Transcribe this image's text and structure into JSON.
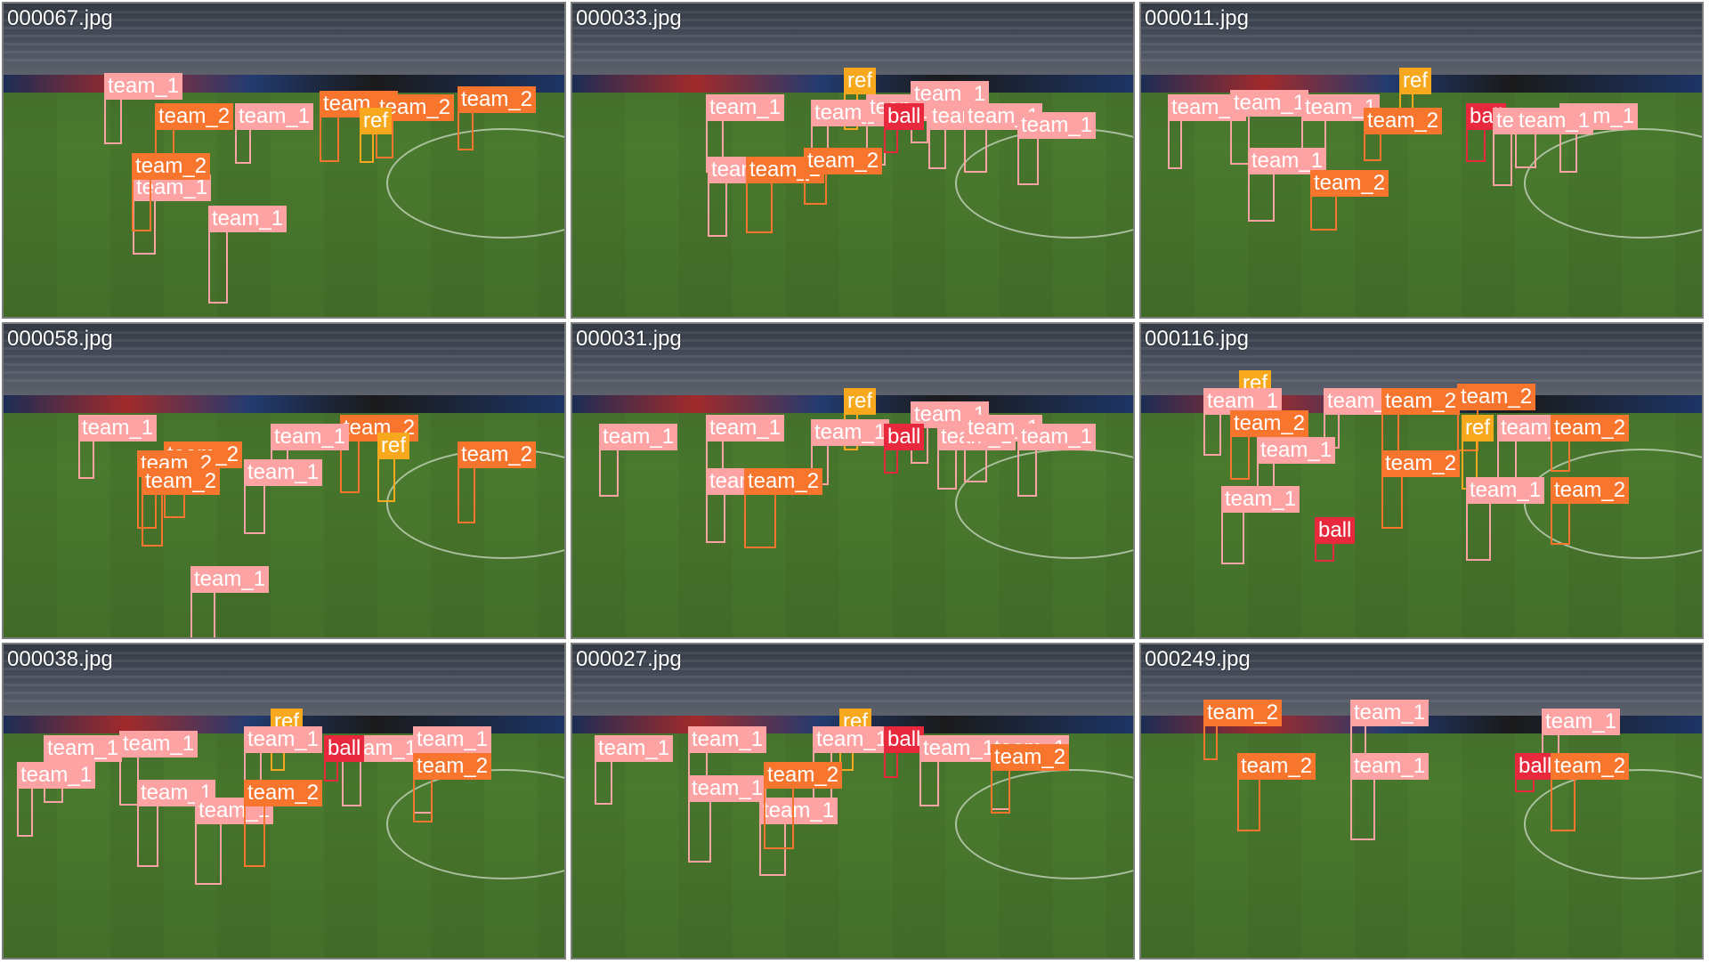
{
  "colors": {
    "team_1": "#fda3a3",
    "team_2": "#f7752d",
    "ref": "#f7a81c",
    "ball": "#e8283c"
  },
  "tiles": [
    {
      "label": "000067.jpg",
      "detections": [
        {
          "class": "team_1",
          "label": "team_1"
        },
        {
          "class": "team_2",
          "label": "team_2"
        },
        {
          "class": "team_2",
          "label": "team_2"
        },
        {
          "class": "team_2",
          "label": "team_2"
        },
        {
          "class": "team_2",
          "label": "team_2"
        },
        {
          "class": "team_1",
          "label": "team_1"
        },
        {
          "class": "team_1",
          "label": "team_1"
        },
        {
          "class": "team_1",
          "label": "team_1"
        },
        {
          "class": "team_2",
          "label": "team_2"
        },
        {
          "class": "ref",
          "label": "ref"
        }
      ]
    },
    {
      "label": "000033.jpg",
      "detections": [
        {
          "class": "ref",
          "label": "ref"
        },
        {
          "class": "team_1",
          "label": "team_1"
        },
        {
          "class": "team_1",
          "label": "team_1"
        },
        {
          "class": "team_1",
          "label": "team_1"
        },
        {
          "class": "team_1",
          "label": "team_1"
        },
        {
          "class": "ball",
          "label": "ball"
        },
        {
          "class": "team_1",
          "label": "team_1"
        },
        {
          "class": "team_1",
          "label": "team_1"
        },
        {
          "class": "team_1",
          "label": "team_1"
        },
        {
          "class": "team_2",
          "label": "team_2"
        },
        {
          "class": "team_2",
          "label": "team_2"
        },
        {
          "class": "team_1",
          "label": "team_1"
        }
      ]
    },
    {
      "label": "000011.jpg",
      "detections": [
        {
          "class": "ref",
          "label": "ref"
        },
        {
          "class": "team_1",
          "label": "team_1"
        },
        {
          "class": "team_1",
          "label": "team_1"
        },
        {
          "class": "team_1",
          "label": "team_1"
        },
        {
          "class": "team_2",
          "label": "team_2"
        },
        {
          "class": "ball",
          "label": "ball"
        },
        {
          "class": "team_1",
          "label": "team_1"
        },
        {
          "class": "team_1",
          "label": "team_1"
        },
        {
          "class": "team_1",
          "label": "team_1"
        },
        {
          "class": "team_1",
          "label": "team_1"
        },
        {
          "class": "team_2",
          "label": "team_2"
        }
      ]
    },
    {
      "label": "000058.jpg",
      "detections": [
        {
          "class": "team_1",
          "label": "team_1"
        },
        {
          "class": "team_2",
          "label": "team_2"
        },
        {
          "class": "team_2",
          "label": "team_2"
        },
        {
          "class": "team_1",
          "label": "team_1"
        },
        {
          "class": "team_2",
          "label": "team_2"
        },
        {
          "class": "team_2",
          "label": "team_2"
        },
        {
          "class": "team_1",
          "label": "team_1"
        },
        {
          "class": "team_1",
          "label": "team_1"
        },
        {
          "class": "team_2",
          "label": "team_2"
        },
        {
          "class": "ref",
          "label": "ref"
        }
      ]
    },
    {
      "label": "000031.jpg",
      "detections": [
        {
          "class": "ref",
          "label": "ref"
        },
        {
          "class": "team_1",
          "label": "team_1"
        },
        {
          "class": "team_1",
          "label": "team_1"
        },
        {
          "class": "team_1",
          "label": "team_1"
        },
        {
          "class": "team_1",
          "label": "team_1"
        },
        {
          "class": "ball",
          "label": "ball"
        },
        {
          "class": "team_1",
          "label": "team_1"
        },
        {
          "class": "team_1",
          "label": "team_1"
        },
        {
          "class": "team_1",
          "label": "team_1"
        },
        {
          "class": "team_2",
          "label": "team_2"
        },
        {
          "class": "team_1",
          "label": "team_1"
        }
      ]
    },
    {
      "label": "000116.jpg",
      "detections": [
        {
          "class": "ref",
          "label": "ref"
        },
        {
          "class": "team_1",
          "label": "team_1"
        },
        {
          "class": "team_1",
          "label": "team_1"
        },
        {
          "class": "team_2",
          "label": "team_2"
        },
        {
          "class": "team_2",
          "label": "team_2"
        },
        {
          "class": "team_2",
          "label": "team_2"
        },
        {
          "class": "ref",
          "label": "ref"
        },
        {
          "class": "team_1",
          "label": "team_1"
        },
        {
          "class": "team_2",
          "label": "team_2"
        },
        {
          "class": "team_1",
          "label": "team_1"
        },
        {
          "class": "team_1",
          "label": "team_1"
        },
        {
          "class": "team_2",
          "label": "team_2"
        },
        {
          "class": "team_1",
          "label": "team_1"
        },
        {
          "class": "ball",
          "label": "ball"
        },
        {
          "class": "team_2",
          "label": "team_2"
        }
      ]
    },
    {
      "label": "000038.jpg",
      "detections": [
        {
          "class": "ref",
          "label": "ref"
        },
        {
          "class": "team_1",
          "label": "team_1"
        },
        {
          "class": "team_1",
          "label": "team_1"
        },
        {
          "class": "team_1",
          "label": "team_1"
        },
        {
          "class": "team_1",
          "label": "team_1"
        },
        {
          "class": "ball",
          "label": "ball"
        },
        {
          "class": "team_1",
          "label": "team_1"
        },
        {
          "class": "team_1",
          "label": "team_1"
        },
        {
          "class": "team_1",
          "label": "team_1"
        },
        {
          "class": "team_1",
          "label": "team_1"
        },
        {
          "class": "team_2",
          "label": "team_2"
        },
        {
          "class": "team_2",
          "label": "team_2"
        }
      ]
    },
    {
      "label": "000027.jpg",
      "detections": [
        {
          "class": "ref",
          "label": "ref"
        },
        {
          "class": "team_1",
          "label": "team_1"
        },
        {
          "class": "team_1",
          "label": "team_1"
        },
        {
          "class": "team_1",
          "label": "team_1"
        },
        {
          "class": "ball",
          "label": "ball"
        },
        {
          "class": "team_1",
          "label": "team_1"
        },
        {
          "class": "team_1",
          "label": "team_1"
        },
        {
          "class": "team_1",
          "label": "team_1"
        },
        {
          "class": "team_1",
          "label": "team_1"
        },
        {
          "class": "team_2",
          "label": "team_2"
        },
        {
          "class": "team_2",
          "label": "team_2"
        }
      ]
    },
    {
      "label": "000249.jpg",
      "detections": [
        {
          "class": "team_2",
          "label": "team_2"
        },
        {
          "class": "team_1",
          "label": "team_1"
        },
        {
          "class": "team_1",
          "label": "team_1"
        },
        {
          "class": "team_2",
          "label": "team_2"
        },
        {
          "class": "team_1",
          "label": "team_1"
        },
        {
          "class": "ball",
          "label": "ball"
        },
        {
          "class": "team_2",
          "label": "team_2"
        }
      ]
    }
  ]
}
